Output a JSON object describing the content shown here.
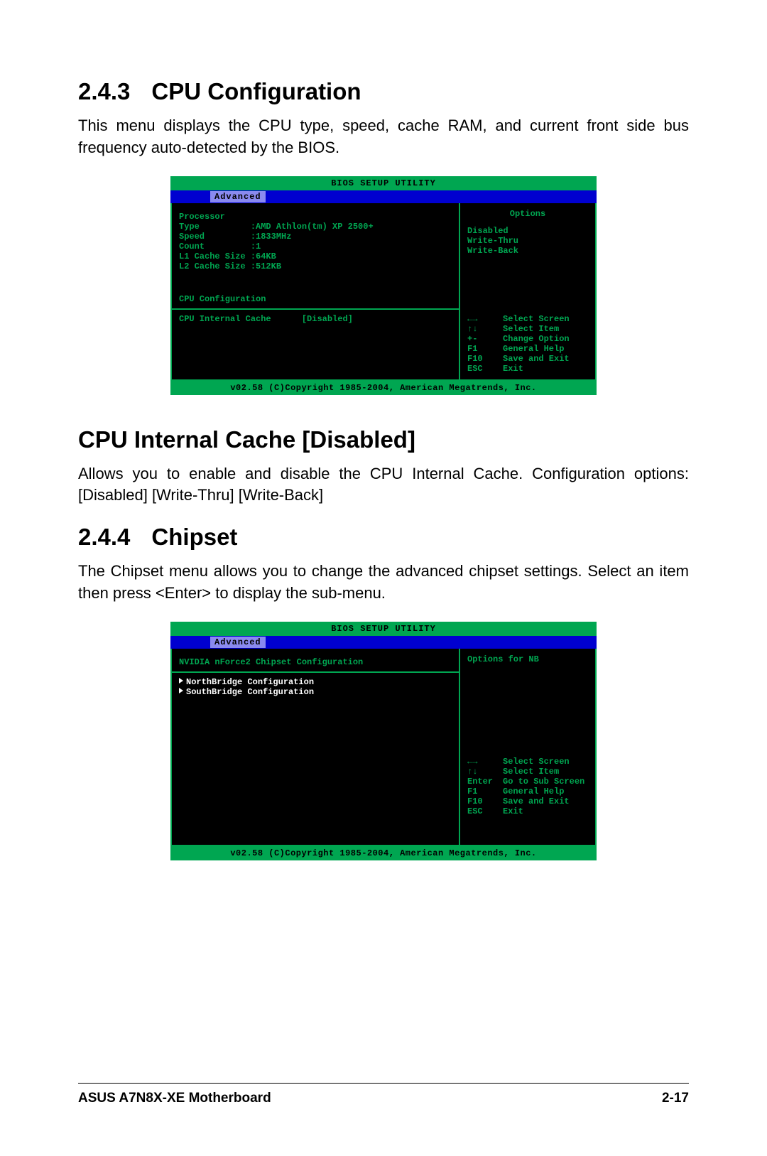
{
  "section1": {
    "num": "2.4.3",
    "title": "CPU Configuration",
    "text": "This menu displays the CPU type, speed, cache RAM, and current front side bus frequency auto-detected by the BIOS."
  },
  "bios1": {
    "title": "BIOS SETUP UTILITY",
    "tab": "Advanced",
    "left": {
      "hdr": "Processor",
      "rows": [
        [
          "Type",
          ":AMD Athlon(tm) XP 2500+"
        ],
        [
          "Speed",
          ":1833MHz"
        ],
        [
          "Count",
          ":1"
        ],
        [
          "L1 Cache Size",
          ":64KB"
        ],
        [
          "L2 Cache Size",
          ":512KB"
        ]
      ],
      "sect": "CPU Configuration",
      "setting_label": "CPU Internal Cache",
      "setting_value": "[Disabled]"
    },
    "right": {
      "opt_title": "Options",
      "opts": [
        "Disabled",
        "Write-Thru",
        "Write-Back"
      ],
      "help": [
        [
          "←→",
          "Select Screen"
        ],
        [
          "↑↓",
          "Select Item"
        ],
        [
          "+-",
          "Change Option"
        ],
        [
          "F1",
          "General Help"
        ],
        [
          "F10",
          "Save and Exit"
        ],
        [
          "ESC",
          "Exit"
        ]
      ]
    },
    "foot": "v02.58 (C)Copyright 1985-2004, American Megatrends, Inc."
  },
  "section2": {
    "title": "CPU Internal Cache [Disabled]",
    "text": "Allows you to enable and disable the CPU Internal Cache. Configuration options: [Disabled] [Write-Thru] [Write-Back]"
  },
  "section3": {
    "num": "2.4.4",
    "title": "Chipset",
    "text": "The Chipset menu allows you to change the advanced chipset settings. Select an item then press <Enter> to display the sub-menu."
  },
  "bios2": {
    "title": "BIOS SETUP UTILITY",
    "tab": "Advanced",
    "left": {
      "hdr": "NVIDIA nForce2 Chipset Configuration",
      "menu": [
        "NorthBridge Configuration",
        "SouthBridge Configuration"
      ]
    },
    "right": {
      "opt_title": "Options for NB",
      "help": [
        [
          "←→",
          "Select Screen"
        ],
        [
          "↑↓",
          "Select Item"
        ],
        [
          "Enter",
          "Go to Sub Screen"
        ],
        [
          "F1",
          "General Help"
        ],
        [
          "F10",
          "Save and Exit"
        ],
        [
          "ESC",
          "Exit"
        ]
      ]
    },
    "foot": "v02.58 (C)Copyright 1985-2004, American Megatrends, Inc."
  },
  "footer": {
    "left": "ASUS A7N8X-XE Motherboard",
    "right": "2-17"
  },
  "colors": {
    "bios_green": "#00a651",
    "bios_blue": "#0000d0",
    "bios_tab": "#8a8af0",
    "bios_black": "#000000",
    "bios_white": "#ffffff"
  }
}
